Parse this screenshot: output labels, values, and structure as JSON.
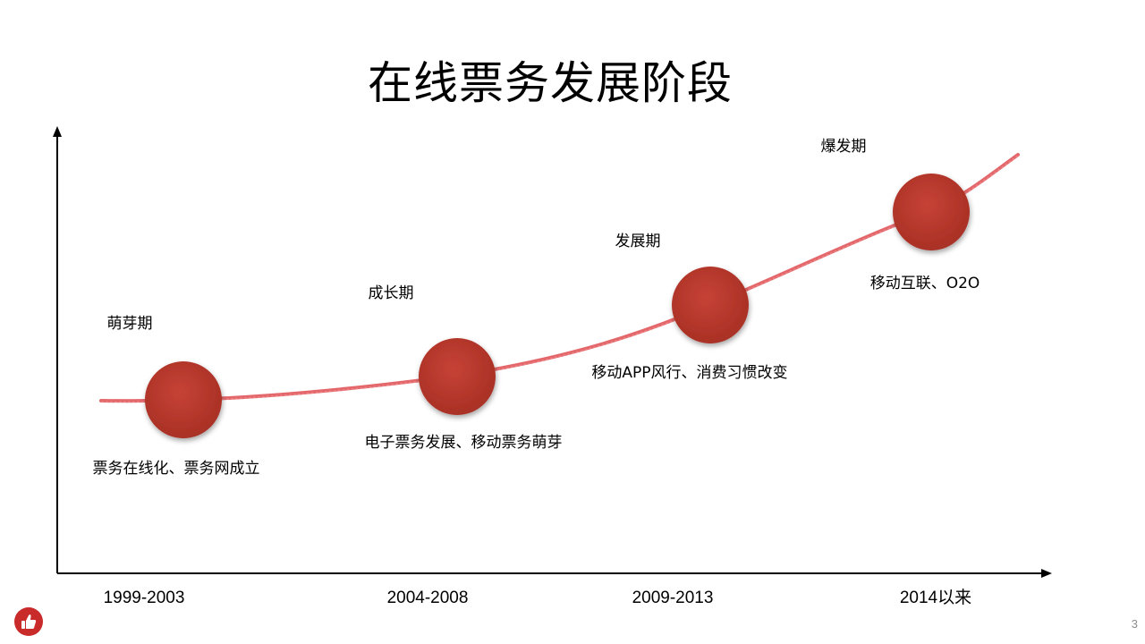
{
  "title": "在线票务发展阶段",
  "page_number": "3",
  "colors": {
    "curve": "#e0575a",
    "node": "#b7372d",
    "axis": "#000000",
    "badge": "#c92a2a"
  },
  "stages": [
    {
      "name": "萌芽期",
      "desc": "票务在线化、票务网成立",
      "period": "1999-2003"
    },
    {
      "name": "成长期",
      "desc": "电子票务发展、移动票务萌芽",
      "period": "2004-2008"
    },
    {
      "name": "发展期",
      "desc": "移动APP风行、消费习惯改变",
      "period": "2009-2013"
    },
    {
      "name": "爆发期",
      "desc": "移动互联、O2O",
      "period": "2014以来"
    }
  ],
  "badge_icon": "thumbs-up-icon"
}
